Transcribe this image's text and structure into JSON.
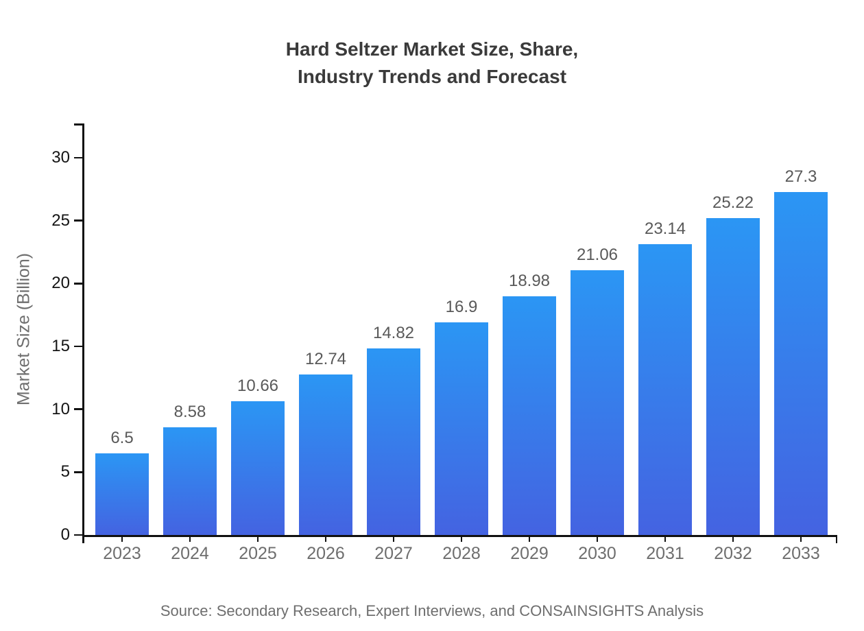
{
  "header": {
    "title": "Hard Seltzer Market Size, Share,\nIndustry Trends and Forecast"
  },
  "source_caption": "Source: Secondary Research, Expert Interviews, and CONSAINSIGHTS Analysis",
  "chart_data": {
    "type": "bar",
    "title": "Hard Seltzer Market Size, Share, Industry Trends and Forecast",
    "categories": [
      "2023",
      "2024",
      "2025",
      "2026",
      "2027",
      "2028",
      "2029",
      "2030",
      "2031",
      "2032",
      "2033"
    ],
    "values": [
      6.5,
      8.58,
      10.66,
      12.74,
      14.82,
      16.9,
      18.98,
      21.06,
      23.14,
      25.22,
      27.3
    ],
    "value_labels": [
      "6.5",
      "8.58",
      "10.66",
      "12.74",
      "14.82",
      "16.9",
      "18.98",
      "21.06",
      "23.14",
      "25.22",
      "27.3"
    ],
    "xlabel": "",
    "ylabel": "Market Size (Billion)",
    "ylim": [
      0,
      33
    ],
    "yticks": [
      0,
      5,
      10,
      15,
      20,
      25,
      30
    ],
    "grid": false,
    "legend": "none",
    "colors": {
      "bar_gradient_top": "#2b96f4",
      "bar_gradient_bottom": "#4463e1",
      "axis": "#111111",
      "y_tick_label": "#141414",
      "x_tick_label": "#6e6e6e",
      "value_label": "#595959",
      "title": "#3a3a3a",
      "ylabel": "#6e6e6e",
      "source": "#6e6e6e",
      "background": "#ffffff"
    }
  }
}
